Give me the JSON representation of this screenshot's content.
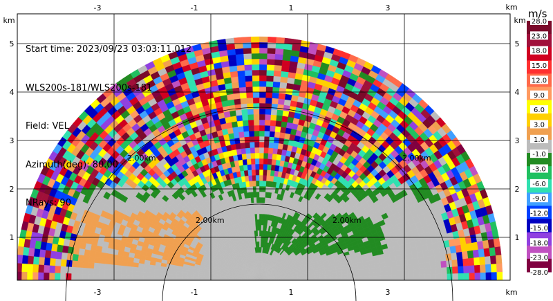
{
  "info": {
    "start_time": "Start time: 2023/09/23 03:03:11.012",
    "instrument": "WLS200s-181/WLS200s-181",
    "field": "Field: VEL",
    "azimuth": "Azimuth(deg): 80.00",
    "nrays": "NRays: 90"
  },
  "axes": {
    "x_unit": "km",
    "y_unit": "km",
    "x_ticks": [
      "-3",
      "-1",
      "1",
      "3"
    ],
    "y_ticks": [
      "1",
      "2",
      "3",
      "4",
      "5"
    ],
    "range_ring_label": "2.00km"
  },
  "colorbar": {
    "unit": "m/s",
    "labels": [
      "28.0",
      "23.0",
      "18.0",
      "15.0",
      "12.0",
      "9.0",
      "6.0",
      "3.0",
      "1.0",
      "-1.0",
      "-3.0",
      "-6.0",
      "-9.0",
      "-12.0",
      "-15.0",
      "-18.0",
      "-23.0",
      "-28.0"
    ],
    "colors": [
      "#7a0a2a",
      "#a0103a",
      "#d00020",
      "#ff3030",
      "#ff6a4a",
      "#ff9a60",
      "#ffff00",
      "#ffd000",
      "#f0a050",
      "#bcbcbc",
      "#228b22",
      "#20c060",
      "#30e0b0",
      "#40a0ff",
      "#0040ff",
      "#0000c0",
      "#9040e0",
      "#c050c0",
      "#800040"
    ]
  },
  "colors": {
    "ground_gray": "#bcbcbc",
    "green": "#228b22",
    "orange": "#f0a050"
  }
}
